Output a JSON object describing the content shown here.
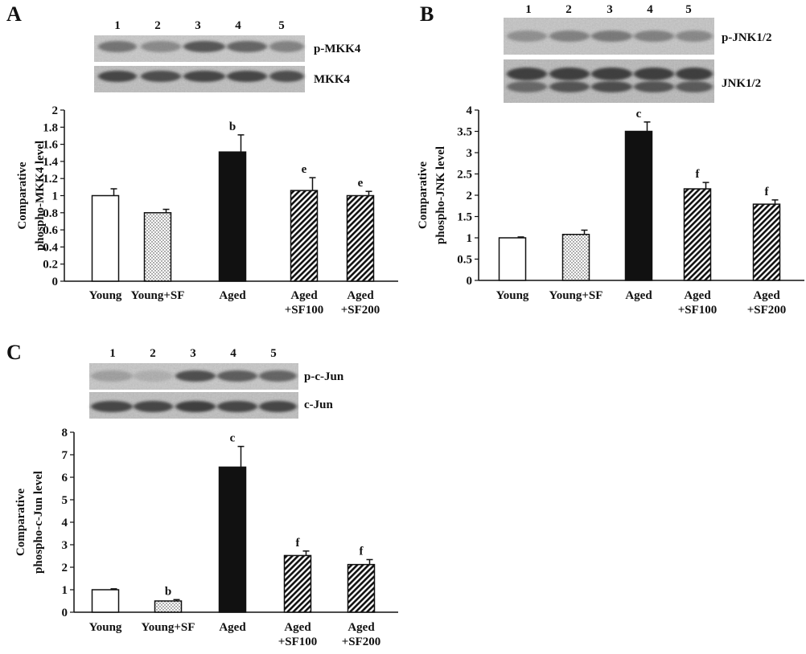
{
  "colors": {
    "ink": "#111111",
    "bar_fill_aged": "#111111",
    "blot_bg": "#cfcfcf",
    "band": "#333333"
  },
  "patterns": [
    "open",
    "dotted",
    "solid",
    "hatched",
    "hatched"
  ],
  "chart_data": [
    {
      "type": "bar",
      "panel": "A",
      "lanes": [
        "1",
        "2",
        "3",
        "4",
        "5"
      ],
      "blots": [
        "p-MKK4",
        "MKK4"
      ],
      "categories": [
        [
          "Young"
        ],
        [
          "Young+SF"
        ],
        [
          "Aged"
        ],
        [
          "Aged",
          "+SF100"
        ],
        [
          "Aged",
          "+SF200"
        ]
      ],
      "values": [
        1.0,
        0.8,
        1.51,
        1.06,
        1.0
      ],
      "errors": [
        0.08,
        0.04,
        0.2,
        0.15,
        0.05
      ],
      "significance": [
        "",
        "",
        "b",
        "e",
        "e"
      ],
      "ylabel": [
        "Comparative",
        "phospho-MKK4 level"
      ],
      "ylim": [
        0,
        2
      ],
      "yticks": [
        "0",
        "0.2",
        "0.4",
        "0.6",
        "0.8",
        "1",
        "1.2",
        "1.4",
        "1.6",
        "1.8",
        "2"
      ],
      "grid": false
    },
    {
      "type": "bar",
      "panel": "B",
      "lanes": [
        "1",
        "2",
        "3",
        "4",
        "5"
      ],
      "blots": [
        "p-JNK1/2",
        "JNK1/2"
      ],
      "categories": [
        [
          "Young"
        ],
        [
          "Young+SF"
        ],
        [
          "Aged"
        ],
        [
          "Aged",
          "+SF100"
        ],
        [
          "Aged",
          "+SF200"
        ]
      ],
      "values": [
        1.0,
        1.08,
        3.5,
        2.15,
        1.79
      ],
      "errors": [
        0.02,
        0.1,
        0.22,
        0.15,
        0.1
      ],
      "significance": [
        "",
        "",
        "c",
        "f",
        "f"
      ],
      "ylabel": [
        "Comparative",
        "phospho-JNK level"
      ],
      "ylim": [
        0,
        4
      ],
      "yticks": [
        "0",
        "0.5",
        "1",
        "1.5",
        "2",
        "2.5",
        "3",
        "3.5",
        "4"
      ],
      "grid": false
    },
    {
      "type": "bar",
      "panel": "C",
      "lanes": [
        "1",
        "2",
        "3",
        "4",
        "5"
      ],
      "blots": [
        "p-c-Jun",
        "c-Jun"
      ],
      "categories": [
        [
          "Young"
        ],
        [
          "Young+SF"
        ],
        [
          "Aged"
        ],
        [
          "Aged",
          "+SF100"
        ],
        [
          "Aged",
          "+SF200"
        ]
      ],
      "values": [
        1.0,
        0.5,
        6.45,
        2.52,
        2.12
      ],
      "errors": [
        0.04,
        0.06,
        0.92,
        0.2,
        0.22
      ],
      "significance": [
        "",
        "b",
        "c",
        "f",
        "f"
      ],
      "ylabel": [
        "Comparative",
        "phospho-c-Jun level"
      ],
      "ylim": [
        0,
        8
      ],
      "yticks": [
        "0",
        "1",
        "2",
        "3",
        "4",
        "5",
        "6",
        "7",
        "8"
      ],
      "grid": false
    }
  ]
}
